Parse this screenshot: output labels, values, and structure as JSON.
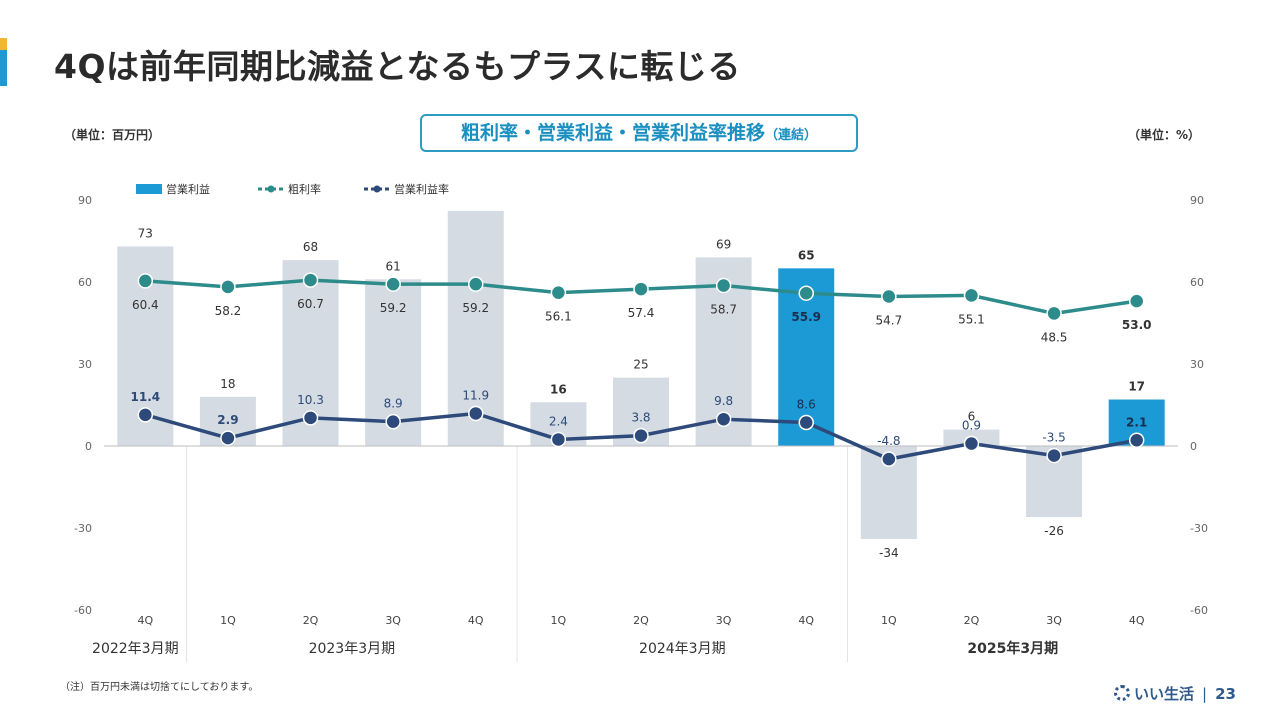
{
  "slide": {
    "title": "4Qは前年同期比減益となるもプラスに転じる",
    "unit_left": "（単位：百万円）",
    "unit_right": "（単位：%）",
    "chart_title": "粗利率・営業利益・営業利益率推移",
    "chart_title_sub": "（連結）",
    "note": "（注）百万円未満は切捨てにしております。",
    "brand": "いい生活",
    "page_number": "23",
    "colors": {
      "accent_blue": "#1b9ad6",
      "accent_yellow": "#f2b632",
      "teal": "#2e8b8b",
      "navy": "#2d4a7a",
      "grey_bar": "#d5dbe2"
    }
  },
  "chart_data": {
    "type": "bar",
    "categories": [
      "4Q",
      "1Q",
      "2Q",
      "3Q",
      "4Q",
      "1Q",
      "2Q",
      "3Q",
      "4Q",
      "1Q",
      "2Q",
      "3Q",
      "4Q"
    ],
    "fiscal_years": [
      {
        "label": "2022年3月期",
        "start": 0,
        "end": 0,
        "bold": false
      },
      {
        "label": "2023年3月期",
        "start": 1,
        "end": 4,
        "bold": false
      },
      {
        "label": "2024年3月期",
        "start": 5,
        "end": 8,
        "bold": false
      },
      {
        "label": "2025年3月期",
        "start": 9,
        "end": 12,
        "bold": true
      }
    ],
    "ylim": [
      -60,
      90
    ],
    "yticks": [
      -60,
      -30,
      0,
      30,
      60,
      90
    ],
    "series": [
      {
        "name": "営業利益",
        "kind": "bar",
        "values": [
          73,
          18,
          68,
          61,
          86,
          16,
          25,
          69,
          65,
          -34,
          6,
          -26,
          17
        ],
        "labels": [
          "73",
          "18",
          "68",
          "61",
          "",
          "16",
          "25",
          "69",
          "65",
          "-34",
          "6",
          "-26",
          "17"
        ],
        "highlight": [
          8,
          12
        ],
        "bold_labels": [
          5,
          8,
          12
        ]
      },
      {
        "name": "粗利率",
        "kind": "line",
        "values": [
          60.4,
          58.2,
          60.7,
          59.2,
          59.2,
          56.1,
          57.4,
          58.7,
          55.9,
          54.7,
          55.1,
          48.5,
          53.0
        ],
        "labels": [
          "60.4",
          "58.2",
          "60.7",
          "59.2",
          "59.2",
          "56.1",
          "57.4",
          "58.7",
          "55.9",
          "54.7",
          "55.1",
          "48.5",
          "53.0"
        ],
        "bold_labels": [
          8,
          12
        ]
      },
      {
        "name": "営業利益率",
        "kind": "line",
        "values": [
          11.4,
          2.9,
          10.3,
          8.9,
          11.9,
          2.4,
          3.8,
          9.8,
          8.6,
          -4.8,
          0.9,
          -3.5,
          2.1
        ],
        "labels": [
          "11.4",
          "2.9",
          "10.3",
          "8.9",
          "11.9",
          "2.4",
          "3.8",
          "9.8",
          "8.6",
          "-4.8",
          "0.9",
          "-3.5",
          "2.1"
        ],
        "bold_labels": [
          0,
          1,
          12
        ]
      }
    ],
    "legend_position": "top-left"
  }
}
